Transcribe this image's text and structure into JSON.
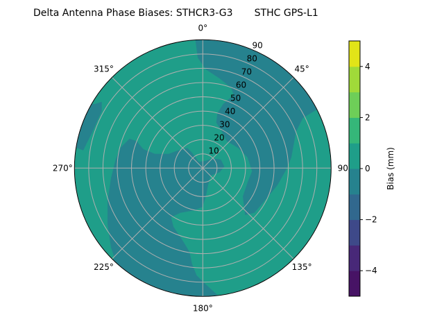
{
  "chart_data": {
    "type": "heatmap",
    "subtype": "polar filled contour",
    "title": "Delta Antenna Phase Biases: STHCR3-G3       STHC GPS-L1",
    "angular_ticks": [
      "0°",
      "45°",
      "90",
      "135°",
      "180°",
      "225°",
      "270°",
      "315°"
    ],
    "angular_tick_values": [
      0,
      45,
      90,
      135,
      180,
      225,
      270,
      315
    ],
    "radial_ticks": [
      "10",
      "20",
      "30",
      "40",
      "50",
      "60",
      "70",
      "80",
      "90"
    ],
    "radial_tick_values": [
      10,
      20,
      30,
      40,
      50,
      60,
      70,
      80,
      90
    ],
    "radial_range": [
      0,
      90
    ],
    "angular_direction": "clockwise",
    "angular_zero": "top",
    "grid": true,
    "colorbar": {
      "label": "Bias (mm)",
      "range": [
        -5,
        5
      ],
      "levels": [
        -5,
        -4,
        -3,
        -2,
        -1,
        0,
        1,
        2,
        3,
        4,
        5
      ],
      "tick_labels": [
        "−4",
        "−2",
        "0",
        "2",
        "4"
      ],
      "tick_values": [
        -4,
        -2,
        0,
        2,
        4
      ],
      "colormap": "viridis",
      "colors": [
        "#471365",
        "#482878",
        "#3e4989",
        "#31688e",
        "#26828e",
        "#1f9e89",
        "#35b779",
        "#6ece58",
        "#a0da39",
        "#e2e418"
      ]
    },
    "regions": [
      {
        "level_range": [
          0,
          1
        ],
        "color": "#1f9e89"
      },
      {
        "level_range": [
          -1,
          0
        ],
        "color": "#26828e"
      }
    ]
  }
}
